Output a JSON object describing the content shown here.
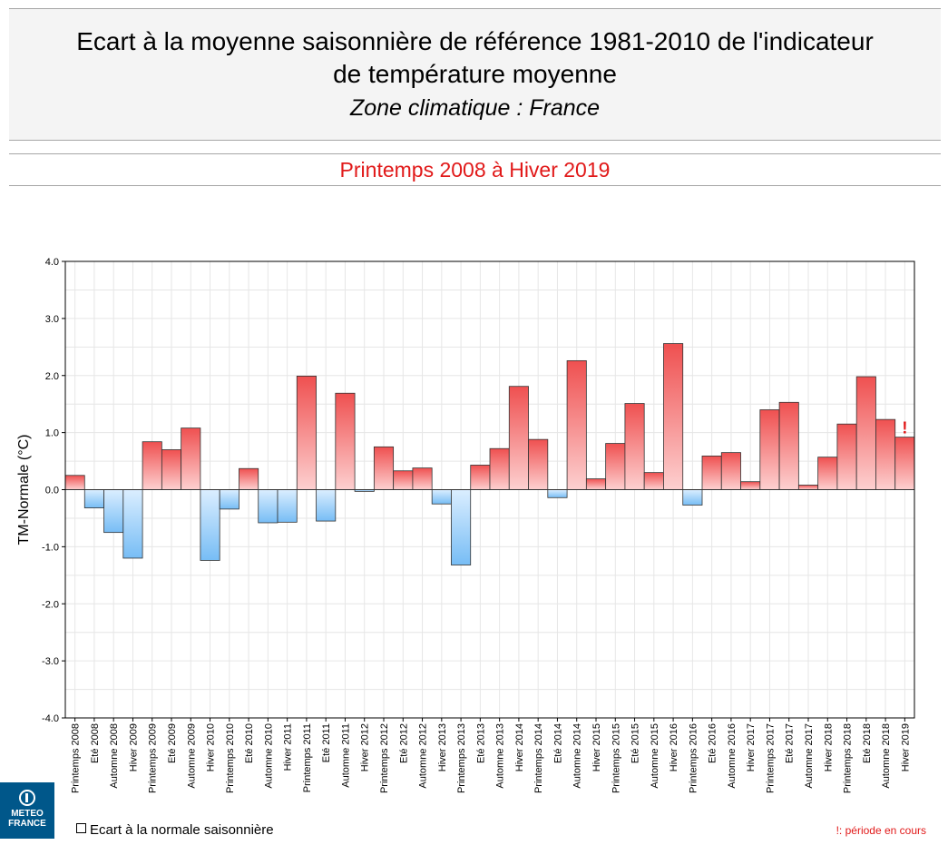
{
  "header": {
    "title_line1": "Ecart à la moyenne saisonnière de référence 1981-2010 de l'indicateur",
    "title_line2": "de température moyenne",
    "subtitle": "Zone climatique : France",
    "period": "Printemps 2008 à Hiver 2019"
  },
  "logo": {
    "line1": "METEO",
    "line2": "FRANCE"
  },
  "legend": {
    "label": "Ecart à la normale saisonnière"
  },
  "footnote": "!: période en cours",
  "colors": {
    "positive_top": "#ef5050",
    "positive_bottom": "#fdd0d0",
    "negative_top": "#dbeeff",
    "negative_bottom": "#77bdf5",
    "accent_red": "#e11919"
  },
  "chart_data": {
    "type": "bar",
    "ylabel": "TM-Normale (°C)",
    "ylim": [
      -4,
      4
    ],
    "yticks": [
      "-4.0",
      "-3.0",
      "-2.0",
      "-1.0",
      "0.0",
      "1.0",
      "2.0",
      "3.0",
      "4.0"
    ],
    "grid": true,
    "current_period_marker": "!",
    "categories": [
      "Printemps 2008",
      "Eté 2008",
      "Automne 2008",
      "Hiver 2009",
      "Printemps 2009",
      "Eté 2009",
      "Automne 2009",
      "Hiver 2010",
      "Printemps 2010",
      "Eté 2010",
      "Automne 2010",
      "Hiver 2011",
      "Printemps 2011",
      "Eté 2011",
      "Automne 2011",
      "Hiver 2012",
      "Printemps 2012",
      "Eté 2012",
      "Automne 2012",
      "Hiver 2013",
      "Printemps 2013",
      "Eté 2013",
      "Automne 2013",
      "Hiver 2014",
      "Printemps 2014",
      "Eté 2014",
      "Automne 2014",
      "Hiver 2015",
      "Printemps 2015",
      "Eté 2015",
      "Automne 2015",
      "Hiver 2016",
      "Printemps 2016",
      "Eté 2016",
      "Automne 2016",
      "Hiver 2017",
      "Printemps 2017",
      "Eté 2017",
      "Automne 2017",
      "Hiver 2018",
      "Printemps 2018",
      "Eté 2018",
      "Automne 2018",
      "Hiver 2019"
    ],
    "values": [
      0.25,
      -0.32,
      -0.75,
      -1.2,
      0.84,
      0.7,
      1.08,
      -1.24,
      -0.34,
      0.37,
      -0.58,
      -0.57,
      1.99,
      -0.55,
      1.69,
      -0.03,
      0.75,
      0.33,
      0.38,
      -0.25,
      -1.32,
      0.43,
      0.72,
      1.81,
      0.88,
      -0.14,
      2.26,
      0.19,
      0.81,
      1.51,
      0.3,
      2.56,
      -0.27,
      0.59,
      0.65,
      0.14,
      1.4,
      1.53,
      0.08,
      0.57,
      1.15,
      1.98,
      1.23,
      0.92
    ]
  }
}
